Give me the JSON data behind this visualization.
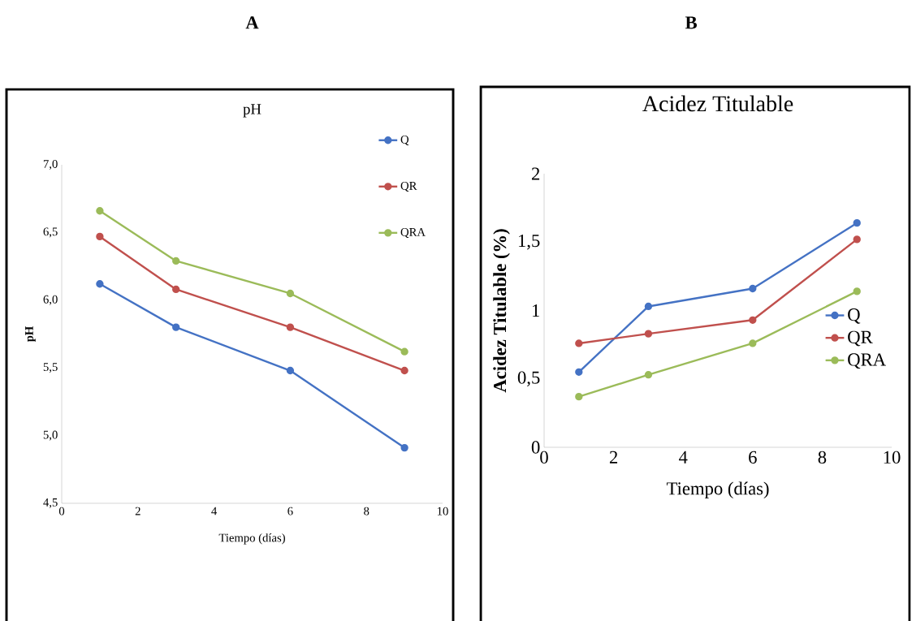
{
  "chart_data": [
    {
      "type": "line",
      "title": "pH",
      "xlabel": "Tiempo (días)",
      "ylabel": "pH",
      "annotations": [
        "A"
      ],
      "x": [
        1,
        3,
        6,
        9
      ],
      "series": [
        {
          "name": "Q",
          "color": "#4472c4",
          "values": [
            6.12,
            5.8,
            5.48,
            4.91
          ]
        },
        {
          "name": "QR",
          "color": "#c0504d",
          "values": [
            6.47,
            6.08,
            5.8,
            5.48
          ]
        },
        {
          "name": "QRA",
          "color": "#9bbb59",
          "values": [
            6.66,
            6.29,
            6.05,
            5.62
          ]
        }
      ],
      "xlim": [
        0,
        10
      ],
      "xticks": [
        0,
        2,
        4,
        6,
        8,
        10
      ],
      "ylim": [
        4.5,
        7.0
      ],
      "yticks": [
        {
          "value": 4.5,
          "label": "4,5"
        },
        {
          "value": 5.0,
          "label": "5,0"
        },
        {
          "value": 5.5,
          "label": "5,5"
        },
        {
          "value": 6.0,
          "label": "6,0"
        },
        {
          "value": 6.5,
          "label": "6,5"
        },
        {
          "value": 7.0,
          "label": "7,0"
        }
      ],
      "marker": "circle",
      "legend": "top right",
      "grid": false
    },
    {
      "type": "line",
      "title": "Acidez Titulable",
      "xlabel": "Tiempo (días)",
      "ylabel": "Acidez Titulable (%)",
      "annotations": [
        "B"
      ],
      "x": [
        1,
        3,
        6,
        9
      ],
      "series": [
        {
          "name": "Q",
          "color": "#4472c4",
          "values": [
            0.55,
            1.03,
            1.16,
            1.64
          ]
        },
        {
          "name": "QR",
          "color": "#c0504d",
          "values": [
            0.76,
            0.83,
            0.93,
            1.52
          ]
        },
        {
          "name": "QRA",
          "color": "#9bbb59",
          "values": [
            0.37,
            0.53,
            0.76,
            1.14
          ]
        }
      ],
      "xlim": [
        0,
        10
      ],
      "xticks": [
        0,
        2,
        4,
        6,
        8,
        10
      ],
      "ylim": [
        0,
        2
      ],
      "yticks": [
        0,
        {
          "value": 0.5,
          "label": "0,5"
        },
        1,
        {
          "value": 1.5,
          "label": "1,5"
        },
        2
      ],
      "marker": "circle",
      "legend": "right",
      "grid": false
    }
  ]
}
